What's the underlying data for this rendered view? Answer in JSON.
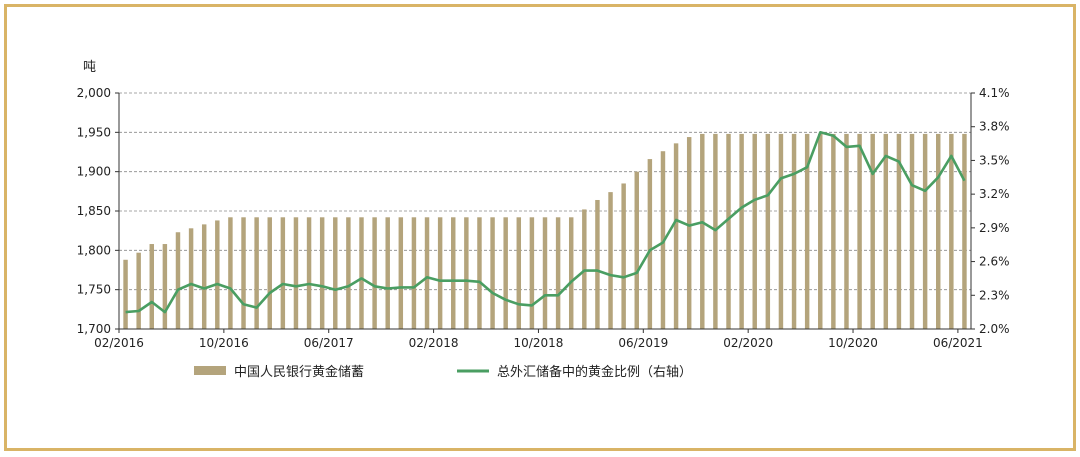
{
  "chart_data": {
    "type": "bar+line",
    "title": "",
    "left_unit": "吨",
    "x_tick_labels": [
      "02/2016",
      "10/2016",
      "06/2017",
      "02/2018",
      "10/2018",
      "06/2019",
      "02/2020",
      "10/2020",
      "06/2021"
    ],
    "y_left": {
      "min": 1700,
      "max": 2000,
      "ticks": [
        "1,700",
        "1,750",
        "1,800",
        "1,850",
        "1,900",
        "1,950",
        "2,000"
      ]
    },
    "y_right": {
      "min": 2.0,
      "max": 4.1,
      "ticks": [
        "2.0%",
        "2.3%",
        "2.6%",
        "2.9%",
        "3.2%",
        "3.5%",
        "3.8%",
        "4.1%"
      ]
    },
    "grid": "horizontal-dashed",
    "legend_position": "bottom",
    "bar_series": {
      "name": "中国人民银行黄金储蓄",
      "color": "#b4a47c",
      "values": [
        1788,
        1797,
        1808,
        1808,
        1823,
        1828,
        1833,
        1838,
        1842,
        1842,
        1842,
        1842,
        1842,
        1842,
        1842,
        1842,
        1842,
        1842,
        1842,
        1842,
        1842,
        1842,
        1842,
        1842,
        1842,
        1842,
        1842,
        1842,
        1842,
        1842,
        1842,
        1842,
        1842,
        1842,
        1842,
        1852,
        1864,
        1874,
        1885,
        1900,
        1916,
        1926,
        1936,
        1944,
        1948,
        1948,
        1948,
        1948,
        1948,
        1948,
        1948,
        1948,
        1948,
        1948,
        1948,
        1948,
        1948,
        1948,
        1948,
        1948,
        1948,
        1948,
        1948,
        1948,
        1948
      ]
    },
    "line_series": {
      "name": "总外汇储备中的黄金比例（右轴）",
      "color": "#4a9e62",
      "values": [
        2.15,
        2.16,
        2.24,
        2.15,
        2.35,
        2.4,
        2.36,
        2.4,
        2.36,
        2.22,
        2.19,
        2.32,
        2.4,
        2.38,
        2.4,
        2.38,
        2.35,
        2.38,
        2.45,
        2.38,
        2.36,
        2.37,
        2.37,
        2.46,
        2.43,
        2.43,
        2.43,
        2.42,
        2.32,
        2.26,
        2.22,
        2.21,
        2.3,
        2.3,
        2.42,
        2.52,
        2.52,
        2.48,
        2.46,
        2.5,
        2.7,
        2.77,
        2.97,
        2.92,
        2.95,
        2.88,
        2.98,
        3.08,
        3.15,
        3.19,
        3.34,
        3.38,
        3.44,
        3.75,
        3.72,
        3.62,
        3.63,
        3.38,
        3.54,
        3.49,
        3.28,
        3.23,
        3.35,
        3.54,
        3.32
      ]
    }
  }
}
